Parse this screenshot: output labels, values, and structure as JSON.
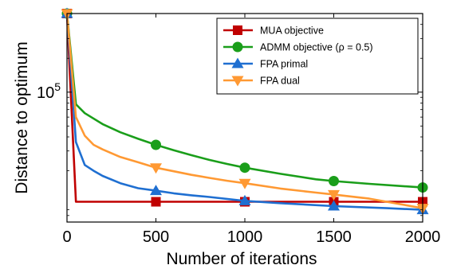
{
  "chart_data": {
    "type": "line",
    "xlabel": "Number of iterations",
    "ylabel": "Distance to optimum",
    "xlim": [
      0,
      2000
    ],
    "x_ticks": [
      "0",
      "500",
      "1000",
      "1500",
      "2000"
    ],
    "y_scale": "log",
    "y_tick_label": {
      "base": "10",
      "exponent": "5",
      "value": 100000
    },
    "ylim": [
      7000,
      500000
    ],
    "grid": false,
    "legend_position": "top-right",
    "series": [
      {
        "name": "MUA objective",
        "color": "#c00000",
        "marker": "square",
        "x": [
          0,
          50,
          100,
          200,
          300,
          400,
          500,
          700,
          1000,
          1500,
          2000
        ],
        "y": [
          500000,
          10600,
          10600,
          10600,
          10600,
          10600,
          10600,
          10600,
          10600,
          10600,
          10600
        ],
        "markers_at": [
          0,
          500,
          1000,
          1500,
          2000
        ]
      },
      {
        "name": "ADMM objective (ρ = 0.5)",
        "color": "#1a9e1a",
        "marker": "circle",
        "x": [
          0,
          50,
          100,
          200,
          300,
          400,
          500,
          600,
          700,
          800,
          900,
          1000,
          1200,
          1400,
          1500,
          1700,
          2000
        ],
        "y": [
          500000,
          78000,
          65000,
          52000,
          44000,
          38500,
          34000,
          30500,
          27500,
          25000,
          23000,
          21300,
          18800,
          16800,
          16200,
          15300,
          14200
        ],
        "markers_at": [
          0,
          500,
          1000,
          1500,
          2000
        ]
      },
      {
        "name": "FPA primal",
        "color": "#1f6fd1",
        "marker": "triangle-up",
        "x": [
          0,
          50,
          100,
          150,
          200,
          300,
          400,
          500,
          600,
          700,
          800,
          1000,
          1200,
          1500,
          1800,
          2000
        ],
        "y": [
          500000,
          36000,
          22500,
          20000,
          18000,
          15500,
          14000,
          13300,
          12600,
          12100,
          11700,
          10800,
          10300,
          9700,
          9300,
          9000
        ],
        "markers_at": [
          0,
          500,
          1000,
          1500,
          2000
        ]
      },
      {
        "name": "FPA dual",
        "color": "#ff9933",
        "marker": "triangle-down",
        "x": [
          0,
          50,
          100,
          150,
          200,
          300,
          400,
          500,
          600,
          700,
          800,
          900,
          1000,
          1200,
          1400,
          1500,
          1700,
          2000
        ],
        "y": [
          500000,
          60000,
          41000,
          34000,
          31000,
          26500,
          23800,
          21300,
          19800,
          18400,
          17300,
          16300,
          15500,
          13900,
          12800,
          12300,
          11300,
          9300
        ],
        "markers_at": [
          0,
          500,
          1000,
          1500,
          2000
        ]
      }
    ]
  }
}
